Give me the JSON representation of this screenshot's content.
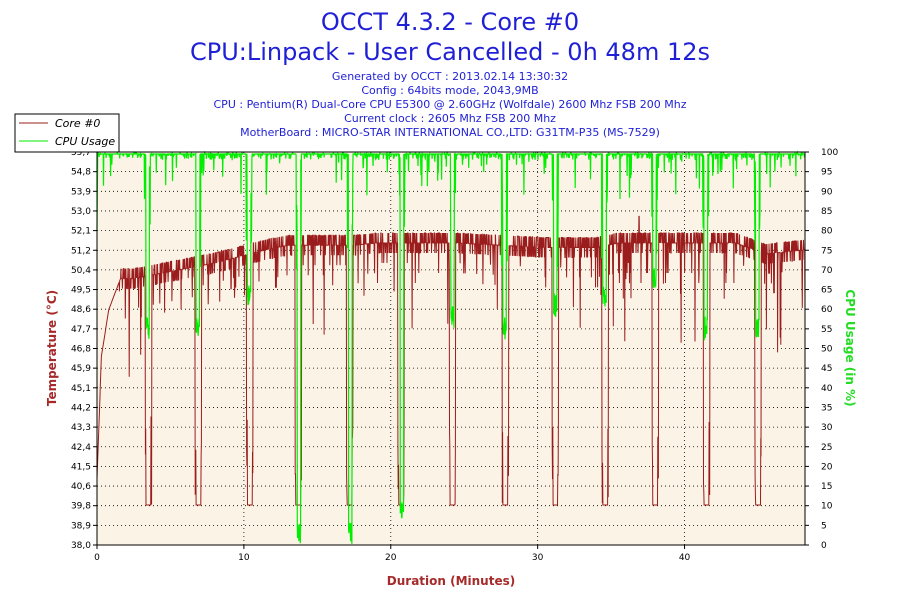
{
  "chart_data": {
    "type": "line",
    "title": "OCCT 4.3.2 - Core #0",
    "subtitle": "CPU:Linpack - User Cancelled - 0h 48m 12s",
    "info_lines": [
      "Generated by OCCT : 2013.02.14 13:30:32",
      "Config : 64bits mode, 2043,9MB",
      "CPU : Pentium(R) Dual-Core CPU E5300 @ 2.60GHz (Wolfdale) 2600 Mhz FSB 200 Mhz",
      "Current clock : 2605 Mhz FSB 200 Mhz",
      "MotherBoard : MICRO-STAR INTERNATIONAL CO.,LTD: G31TM-P35 (MS-7529)"
    ],
    "xlabel": "Duration (Minutes)",
    "ylabel_left": "Temperature (°C)",
    "ylabel_right": "CPU Usage (in %)",
    "xlim": [
      0,
      48.2
    ],
    "ylim_left": [
      38.0,
      55.7
    ],
    "ylim_right": [
      0,
      100
    ],
    "x_ticks": [
      "0",
      "10",
      "20",
      "30",
      "40"
    ],
    "y_left_ticks": [
      "38,0",
      "38,9",
      "39,8",
      "40,6",
      "41,5",
      "42,4",
      "43,3",
      "44,2",
      "45,1",
      "45,9",
      "46,8",
      "47,7",
      "48,6",
      "49,5",
      "50,4",
      "51,2",
      "52,1",
      "53,0",
      "53,9",
      "54,8",
      "55,7"
    ],
    "y_right_ticks": [
      "0",
      "5",
      "10",
      "15",
      "20",
      "25",
      "30",
      "35",
      "40",
      "45",
      "50",
      "55",
      "60",
      "65",
      "70",
      "75",
      "80",
      "85",
      "90",
      "95",
      "100"
    ],
    "legend_position": "top-left",
    "grid": true,
    "series": [
      {
        "name": "Core #0",
        "axis": "left",
        "color": "#9b1c1c",
        "baseline_x": [
          0,
          0.3,
          0.8,
          1.6,
          2.5,
          8.0,
          11.5,
          13.0,
          15.0,
          17.5,
          19.0,
          24.5,
          27.5,
          30.5,
          34.0,
          35.5,
          38.0,
          41.0,
          43.5,
          45.5,
          48.2
        ],
        "baseline_y": [
          41.0,
          46.5,
          48.6,
          50.0,
          50.0,
          50.7,
          51.3,
          51.5,
          51.5,
          51.5,
          51.6,
          51.6,
          51.5,
          51.4,
          51.4,
          51.6,
          51.6,
          51.6,
          51.6,
          51.1,
          51.3
        ],
        "dip_minutes": [
          3.5,
          6.9,
          10.4,
          13.7,
          17.2,
          20.7,
          24.2,
          27.8,
          31.2,
          34.6,
          38.0,
          41.5,
          45.0
        ],
        "dip_min_temp": 39.8,
        "peak": [
          36.9,
          52.8
        ]
      },
      {
        "name": "CPU Usage",
        "axis": "right",
        "color": "#00ee00",
        "baseline_percent": 99.5,
        "initial_x": [
          0,
          0.05,
          0.1
        ],
        "initial_y": [
          80,
          100,
          100
        ],
        "dip_minutes": [
          3.45,
          6.85,
          10.35,
          13.75,
          17.25,
          20.75,
          24.2,
          27.75,
          31.2,
          34.55,
          37.95,
          41.45,
          44.95
        ],
        "dip_min_percent": [
          52,
          52,
          60,
          0,
          0,
          5,
          55,
          52,
          58,
          60,
          65,
          52,
          52
        ]
      }
    ]
  }
}
